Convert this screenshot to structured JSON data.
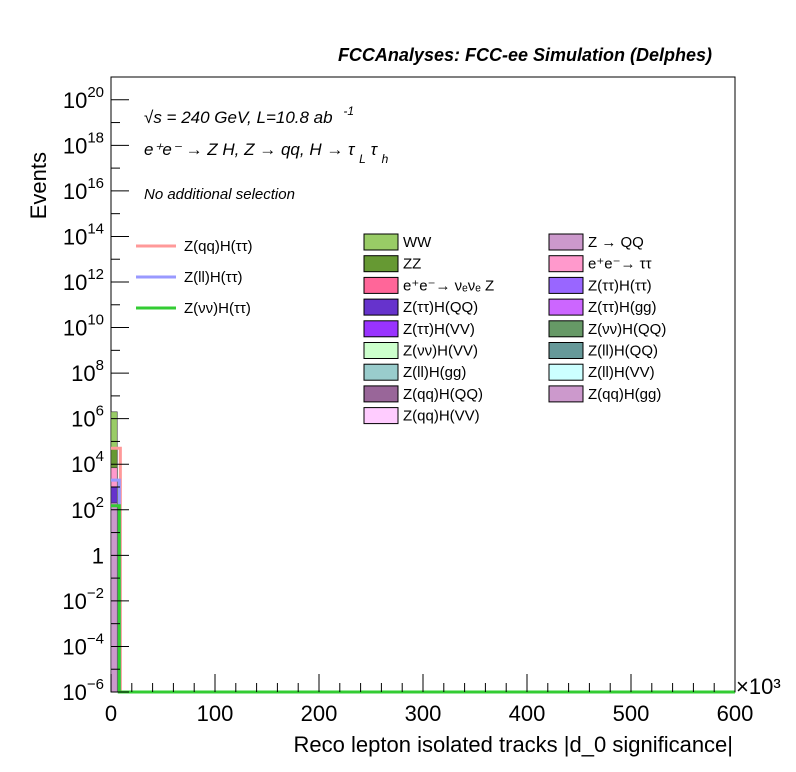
{
  "chart_data": {
    "type": "bar",
    "title": "FCCAnalyses: FCC-ee Simulation (Delphes)",
    "xlabel": "Reco lepton isolated tracks |d_0 significance|",
    "ylabel": "Events",
    "x_multiplier": "×10³",
    "xlim": [
      0,
      600
    ],
    "ylim": [
      1e-06,
      1e+21
    ],
    "ylog": true,
    "grid": false,
    "x_ticks": [
      {
        "v": 0,
        "label": "0"
      },
      {
        "v": 100,
        "label": "100"
      },
      {
        "v": 200,
        "label": "200"
      },
      {
        "v": 300,
        "label": "300"
      },
      {
        "v": 400,
        "label": "400"
      },
      {
        "v": 500,
        "label": "500"
      },
      {
        "v": 600,
        "label": "600"
      }
    ],
    "y_ticks": [
      {
        "exp": -6,
        "base": "10",
        "sup": "−6"
      },
      {
        "exp": -4,
        "base": "10",
        "sup": "−4"
      },
      {
        "exp": -2,
        "base": "10",
        "sup": "−2"
      },
      {
        "exp": 0,
        "base": "1",
        "sup": ""
      },
      {
        "exp": 2,
        "base": "10",
        "sup": "2"
      },
      {
        "exp": 4,
        "base": "10",
        "sup": "4"
      },
      {
        "exp": 6,
        "base": "10",
        "sup": "6"
      },
      {
        "exp": 8,
        "base": "10",
        "sup": "8"
      },
      {
        "exp": 10,
        "base": "10",
        "sup": "10"
      },
      {
        "exp": 12,
        "base": "10",
        "sup": "12"
      },
      {
        "exp": 14,
        "base": "10",
        "sup": "14"
      },
      {
        "exp": 16,
        "base": "10",
        "sup": "16"
      },
      {
        "exp": 18,
        "base": "10",
        "sup": "18"
      },
      {
        "exp": 20,
        "base": "10",
        "sup": "20"
      }
    ],
    "annotations": {
      "energy": "√s = 240 GeV, L=10.8 ab",
      "energy_sup": "-1",
      "process": "e⁺e⁻ → Z H, Z → qq, H → τ",
      "process_sub1": "L",
      "process_tau": "τ",
      "process_sub2": "h",
      "selection": "No additional selection"
    },
    "signal_legend": [
      {
        "name": "Z(qq)H(ττ)",
        "color": "#ff9999"
      },
      {
        "name": "Z(ll)H(ττ)",
        "color": "#9999ff"
      },
      {
        "name": "Z(νν)H(ττ)",
        "color": "#33cc33"
      }
    ],
    "background_legend_col1": [
      {
        "name": "WW",
        "color": "#99cc66"
      },
      {
        "name": "ZZ",
        "color": "#669933"
      },
      {
        "name": "e⁺e⁻→ νₑνₑ Z",
        "color": "#ff6699"
      },
      {
        "name": "Z(ττ)H(QQ)",
        "color": "#6633cc"
      },
      {
        "name": "Z(ττ)H(VV)",
        "color": "#9933ff"
      },
      {
        "name": "Z(νν)H(VV)",
        "color": "#ccffcc"
      },
      {
        "name": "Z(ll)H(gg)",
        "color": "#99cccc"
      },
      {
        "name": "Z(qq)H(QQ)",
        "color": "#996699"
      },
      {
        "name": "Z(qq)H(VV)",
        "color": "#ffccff"
      }
    ],
    "background_legend_col2": [
      {
        "name": "Z → QQ",
        "color": "#cc99cc"
      },
      {
        "name": "e⁺e⁻→ ττ",
        "color": "#ff99cc"
      },
      {
        "name": "Z(ττ)H(ττ)",
        "color": "#9966ff"
      },
      {
        "name": "Z(ττ)H(gg)",
        "color": "#cc66ff"
      },
      {
        "name": "Z(νν)H(QQ)",
        "color": "#669966"
      },
      {
        "name": "Z(ll)H(QQ)",
        "color": "#669999"
      },
      {
        "name": "Z(ll)H(VV)",
        "color": "#ccffff"
      },
      {
        "name": "Z(qq)H(gg)",
        "color": "#cc99cc"
      }
    ],
    "bars": [
      {
        "name": "WW",
        "x": 0,
        "x2": 6,
        "y_low": 1e-06,
        "y_high": 2000000.0,
        "color": "#99cc66"
      },
      {
        "name": "ZZ",
        "x": 0,
        "x2": 6,
        "y_low": 1e-06,
        "y_high": 50000.0,
        "color": "#669933"
      },
      {
        "name": "e⁺e⁻→ ττ",
        "x": 0,
        "x2": 6,
        "y_low": 1e-06,
        "y_high": 7000.0,
        "color": "#ff99cc"
      },
      {
        "name": "Z(ττ)H(QQ)",
        "x": 0,
        "x2": 6,
        "y_low": 1e-06,
        "y_high": 1000.0,
        "color": "#6633cc"
      },
      {
        "name": "Z → QQ",
        "x": 0,
        "x2": 6,
        "y_low": 1e-06,
        "y_high": 200.0,
        "color": "#cc99cc"
      }
    ],
    "lines": [
      {
        "name": "Z(qq)H(ττ)",
        "x_edge": 9,
        "y_top": 50000.0,
        "color": "#ff9999"
      },
      {
        "name": "Z(ll)H(ττ)",
        "x_edge": 8,
        "y_top": 2000.0,
        "color": "#9999ff"
      },
      {
        "name": "Z(νν)H(ττ)",
        "x_edge": 8,
        "y_top": 150.0,
        "color": "#33cc33"
      }
    ]
  }
}
